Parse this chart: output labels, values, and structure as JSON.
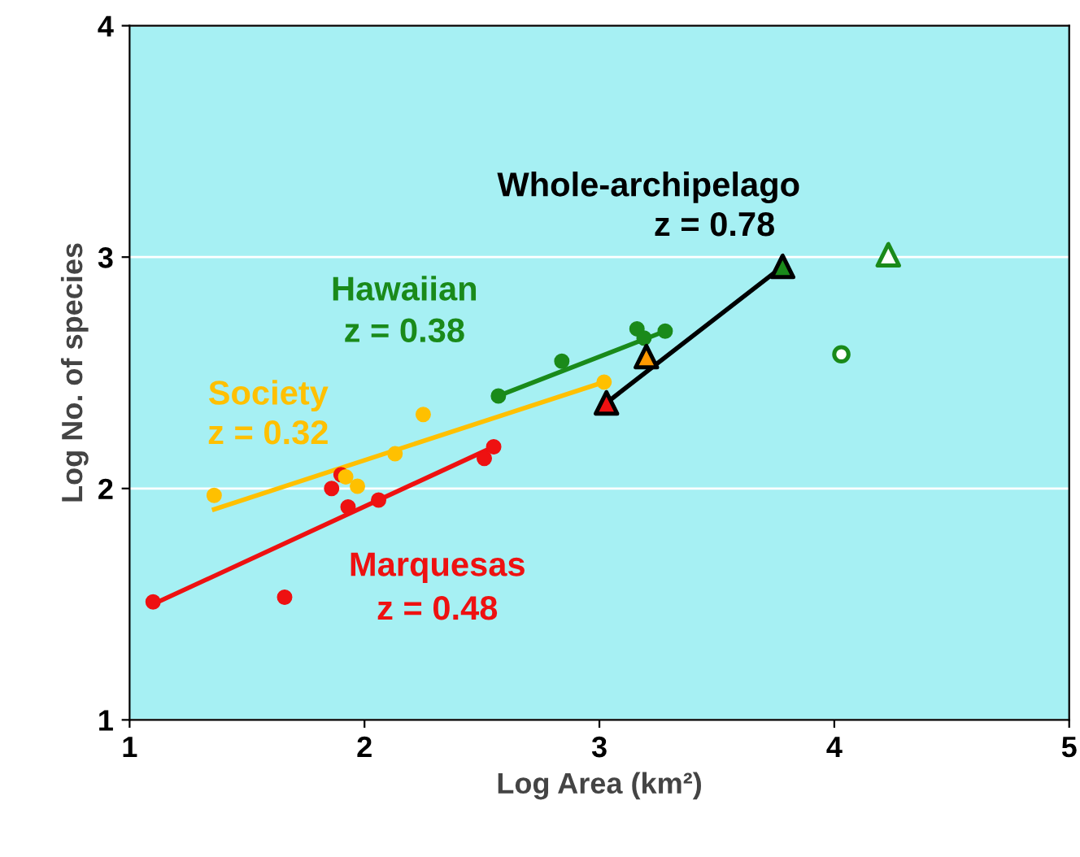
{
  "chart_data": {
    "type": "scatter",
    "xlabel": "Log Area (km²)",
    "ylabel": "Log No. of species",
    "xlim": [
      1,
      5
    ],
    "ylim": [
      1,
      4
    ],
    "xticks": [
      1,
      2,
      3,
      4,
      5
    ],
    "yticks": [
      1,
      2,
      3,
      4
    ],
    "grid": "y",
    "legend": false,
    "series": [
      {
        "type": "line",
        "color": "#ee1111",
        "x": [
          1.1,
          2.55
        ],
        "values": [
          1.5,
          2.18
        ]
      },
      {
        "type": "line",
        "color": "#ffc000",
        "x": [
          1.36,
          3.02
        ],
        "values": [
          1.91,
          2.46
        ]
      },
      {
        "type": "line",
        "color": "#1a8a1a",
        "x": [
          2.57,
          3.28
        ],
        "values": [
          2.4,
          2.68
        ]
      },
      {
        "type": "line",
        "name": "Whole-archipelago",
        "color": "#000000",
        "x": [
          3.03,
          3.78
        ],
        "values": [
          2.37,
          2.96
        ]
      },
      {
        "name": "Marquesas",
        "marker": "circle",
        "color": "#ee1111",
        "x": [
          1.1,
          1.66,
          1.86,
          1.9,
          1.93,
          2.06,
          2.51,
          2.55
        ],
        "values": [
          1.51,
          1.53,
          2.0,
          2.06,
          1.92,
          1.95,
          2.13,
          2.18
        ]
      },
      {
        "name": "Society",
        "marker": "circle",
        "color": "#ffc000",
        "x": [
          1.36,
          1.92,
          1.97,
          2.13,
          2.25,
          3.02
        ],
        "values": [
          1.97,
          2.05,
          2.01,
          2.15,
          2.32,
          2.46
        ]
      },
      {
        "name": "Hawaiian",
        "marker": "circle",
        "color": "#1a8a1a",
        "x": [
          2.57,
          2.84,
          3.16,
          3.19,
          3.28
        ],
        "values": [
          2.4,
          2.55,
          2.69,
          2.65,
          2.68
        ]
      },
      {
        "marker": "triangle",
        "colors": [
          "#ee1111",
          "#ff9900",
          "#1a8a1a"
        ],
        "x": [
          3.03,
          3.2,
          3.78
        ],
        "values": [
          2.37,
          2.57,
          2.96
        ]
      },
      {
        "marker": "triangle",
        "color": "#1a8a1a",
        "x": [
          4.23
        ],
        "values": [
          3.01
        ]
      },
      {
        "marker": "circle",
        "color": "#1a8a1a",
        "x": [
          4.03
        ],
        "values": [
          2.58
        ]
      }
    ],
    "annotations": [
      "z = 0.78",
      "z = 0.48",
      "z = 0.32",
      "z = 0.38"
    ]
  }
}
